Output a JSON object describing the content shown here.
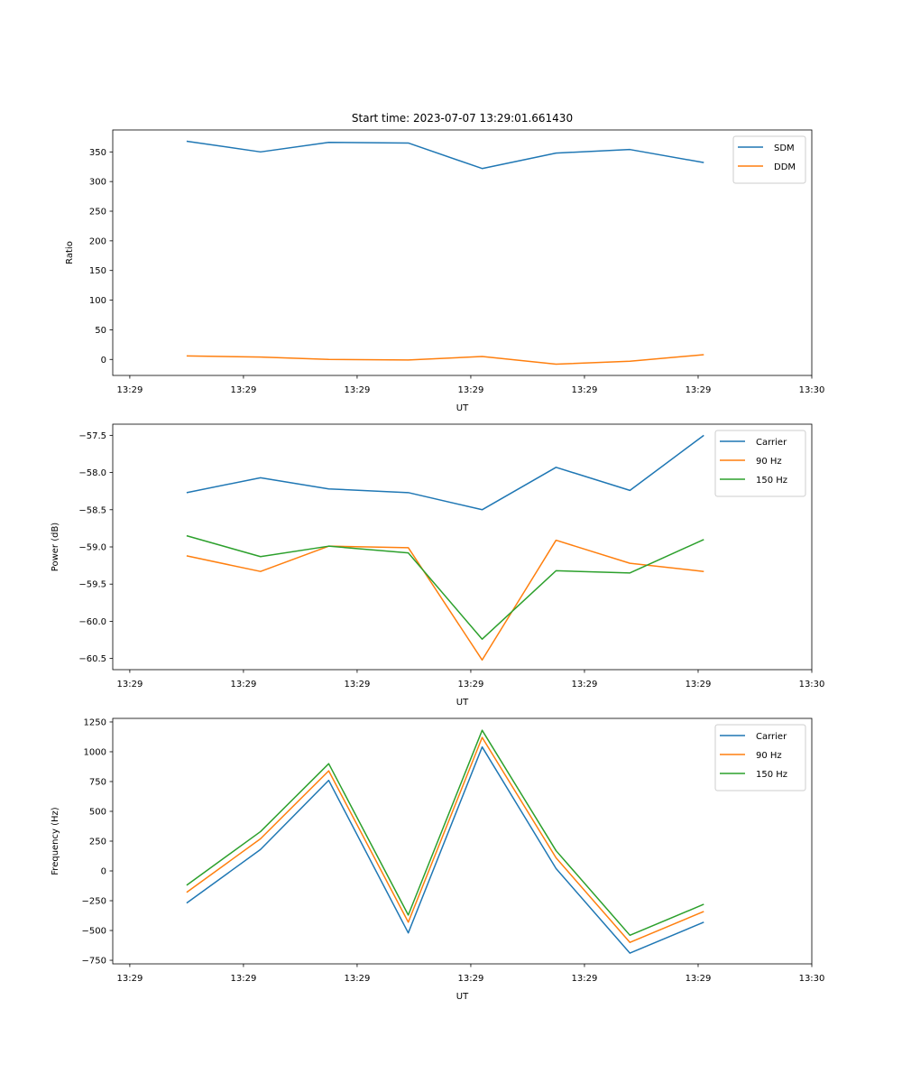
{
  "title": "Start time: 2023-07-07 13:29:01.661430",
  "colors": {
    "blue": "#1f77b4",
    "orange": "#ff7f0e",
    "green": "#2ca02c"
  },
  "chart_data": [
    {
      "type": "line",
      "id": "ratio",
      "ylabel": "Ratio",
      "xlabel": "UT",
      "x_tick_labels": [
        "13:29",
        "13:29",
        "13:29",
        "13:29",
        "13:29",
        "13:29",
        "13:30"
      ],
      "x": [
        0.5,
        1.15,
        1.75,
        2.45,
        3.1,
        3.75,
        4.4,
        5.05
      ],
      "xlim": [
        -0.15,
        6.0
      ],
      "ylim": [
        -27,
        387
      ],
      "yticks": [
        0,
        50,
        100,
        150,
        200,
        250,
        300,
        350
      ],
      "series": [
        {
          "name": "SDM",
          "color": "blue",
          "values": [
            368,
            350,
            366,
            365,
            322,
            348,
            354,
            332
          ]
        },
        {
          "name": "DDM",
          "color": "orange",
          "values": [
            6,
            4,
            0,
            -1,
            5,
            -8,
            -3,
            8
          ]
        }
      ]
    },
    {
      "type": "line",
      "id": "power",
      "ylabel": "Power (dB)",
      "xlabel": "UT",
      "x_tick_labels": [
        "13:29",
        "13:29",
        "13:29",
        "13:29",
        "13:29",
        "13:29",
        "13:30"
      ],
      "x": [
        0.5,
        1.15,
        1.75,
        2.45,
        3.1,
        3.75,
        4.4,
        5.05
      ],
      "xlim": [
        -0.15,
        6.0
      ],
      "ylim": [
        -60.65,
        -57.35
      ],
      "yticks": [
        -57.5,
        -58.0,
        -58.5,
        -59.0,
        -59.5,
        -60.0,
        -60.5
      ],
      "ytick_labels": [
        "−57.5",
        "−58.0",
        "−58.5",
        "−59.0",
        "−59.5",
        "−60.0",
        "−60.5"
      ],
      "series": [
        {
          "name": "Carrier",
          "color": "blue",
          "values": [
            -58.27,
            -58.07,
            -58.22,
            -58.27,
            -58.5,
            -57.93,
            -58.24,
            -57.5
          ]
        },
        {
          "name": "90 Hz",
          "color": "orange",
          "values": [
            -59.12,
            -59.33,
            -58.99,
            -59.01,
            -60.52,
            -58.91,
            -59.22,
            -59.33
          ]
        },
        {
          "name": "150 Hz",
          "color": "green",
          "values": [
            -58.85,
            -59.13,
            -58.99,
            -59.08,
            -60.24,
            -59.32,
            -59.35,
            -58.9
          ]
        }
      ]
    },
    {
      "type": "line",
      "id": "frequency",
      "ylabel": "Frequency (Hz)",
      "xlabel": "UT",
      "x_tick_labels": [
        "13:29",
        "13:29",
        "13:29",
        "13:29",
        "13:29",
        "13:29",
        "13:30"
      ],
      "x": [
        0.5,
        1.15,
        1.75,
        2.45,
        3.1,
        3.75,
        4.4,
        5.05
      ],
      "xlim": [
        -0.15,
        6.0
      ],
      "ylim": [
        -780,
        1280
      ],
      "yticks": [
        1250,
        1000,
        750,
        500,
        250,
        0,
        -250,
        -500,
        -750
      ],
      "ytick_labels": [
        "1250",
        "1000",
        "750",
        "500",
        "250",
        "0",
        "−250",
        "−500",
        "−750"
      ],
      "series": [
        {
          "name": "Carrier",
          "color": "blue",
          "values": [
            -270,
            180,
            760,
            -520,
            1040,
            20,
            -690,
            -430
          ]
        },
        {
          "name": "90 Hz",
          "color": "orange",
          "values": [
            -180,
            270,
            840,
            -430,
            1120,
            110,
            -600,
            -340
          ]
        },
        {
          "name": "150 Hz",
          "color": "green",
          "values": [
            -120,
            330,
            900,
            -370,
            1180,
            170,
            -540,
            -280
          ]
        }
      ]
    }
  ]
}
